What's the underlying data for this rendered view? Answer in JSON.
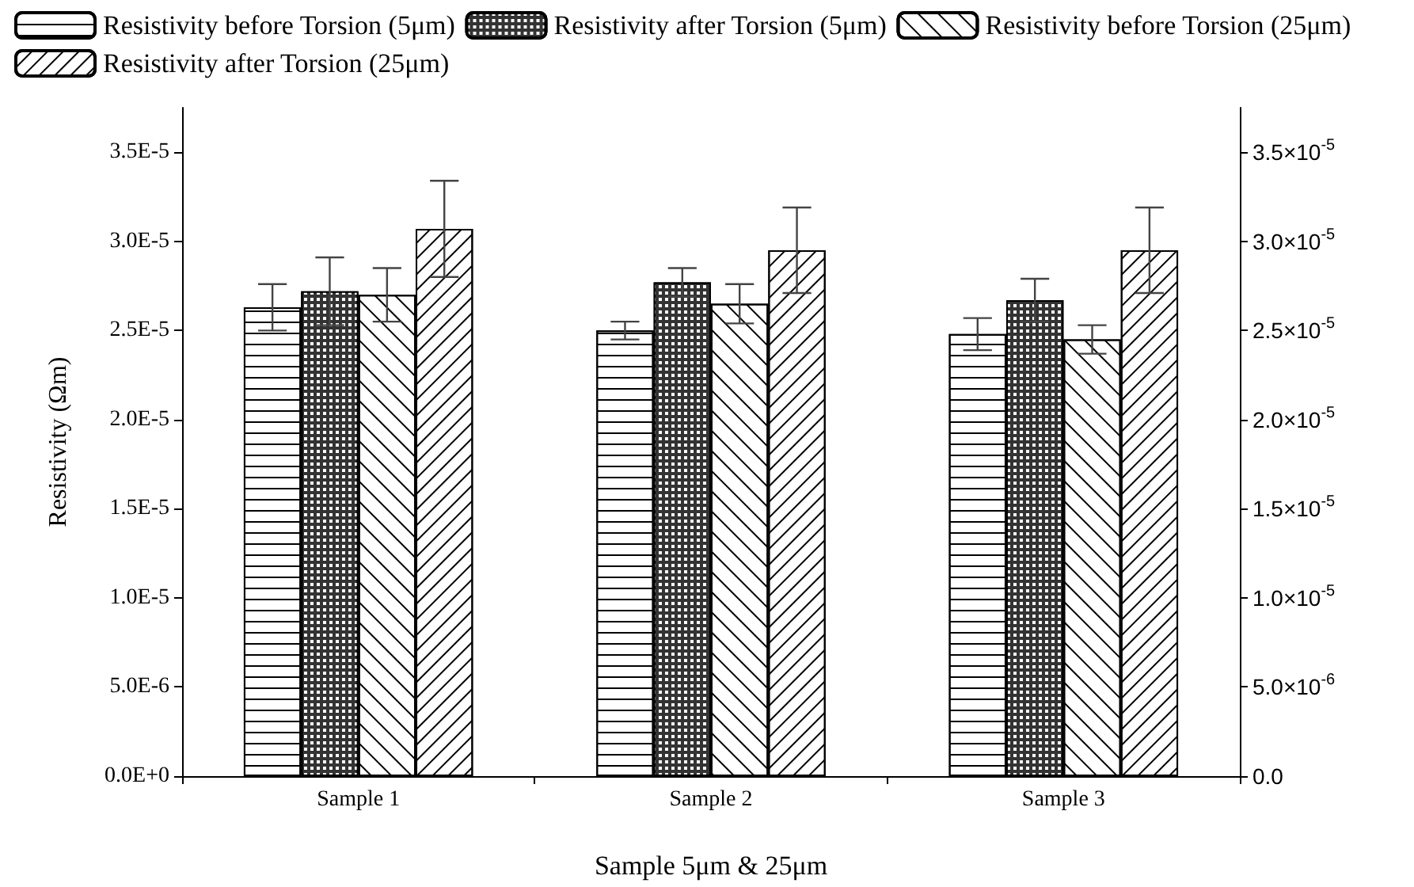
{
  "chart_data": {
    "type": "bar",
    "xlabel": "Sample 5μm & 25μm",
    "ylabel": "Resistivity (Ωm)",
    "categories": [
      "Sample 1",
      "Sample 2",
      "Sample 3"
    ],
    "series": [
      {
        "name": "Resistivity before Torsion (5μm)",
        "color": "#ffffff",
        "values": [
          2.63e-05,
          2.5e-05,
          2.48e-05
        ],
        "errors": [
          1.3e-06,
          5e-07,
          9e-07
        ]
      },
      {
        "name": "Resistivity after Torsion (5μm)",
        "color": "#333333",
        "values": [
          2.72e-05,
          2.77e-05,
          2.67e-05
        ],
        "errors": [
          1.9e-06,
          8e-07,
          1.2e-06
        ]
      },
      {
        "name": "Resistivity before Torsion (25μm)",
        "color": "#ffffff",
        "values": [
          2.7e-05,
          2.65e-05,
          2.45e-05
        ],
        "errors": [
          1.5e-06,
          1.1e-06,
          8e-07
        ]
      },
      {
        "name": "Resistivity after Torsion (25μm)",
        "color": "#ffffff",
        "values": [
          3.07e-05,
          2.95e-05,
          2.95e-05
        ],
        "errors": [
          2.7e-06,
          2.4e-06,
          2.4e-06
        ]
      }
    ],
    "ylim": [
      0,
      3.75e-05
    ],
    "yticks": [
      {
        "value": 0,
        "label": "0.0E+0"
      },
      {
        "value": 5e-06,
        "label": "5.0E-6"
      },
      {
        "value": 1e-05,
        "label": "1.0E-5"
      },
      {
        "value": 1.5e-05,
        "label": "1.5E-5"
      },
      {
        "value": 2e-05,
        "label": "2.0E-5"
      },
      {
        "value": 2.5e-05,
        "label": "2.5E-5"
      },
      {
        "value": 3e-05,
        "label": "3.0E-5"
      },
      {
        "value": 3.5e-05,
        "label": "3.5E-5"
      }
    ],
    "y2lim": [
      0,
      3.75e-05
    ],
    "y2ticks": [
      {
        "value": 0,
        "label": "0.0"
      },
      {
        "value": 5e-06,
        "label": "5.0×10$^{-6}$"
      },
      {
        "value": 1e-05,
        "label": "1.0×10$^{-5}$"
      },
      {
        "value": 1.5e-05,
        "label": "1.5×10$^{-5}$"
      },
      {
        "value": 2e-05,
        "label": "2.0×10$^{-5}$"
      },
      {
        "value": 2.5e-05,
        "label": "2.5×10$^{-5}$"
      },
      {
        "value": 3e-05,
        "label": "3.0×10$^{-5}$"
      },
      {
        "value": 3.5e-05,
        "label": "3.5×10$^{-5}$"
      }
    ],
    "grid": false,
    "legend": "top"
  }
}
